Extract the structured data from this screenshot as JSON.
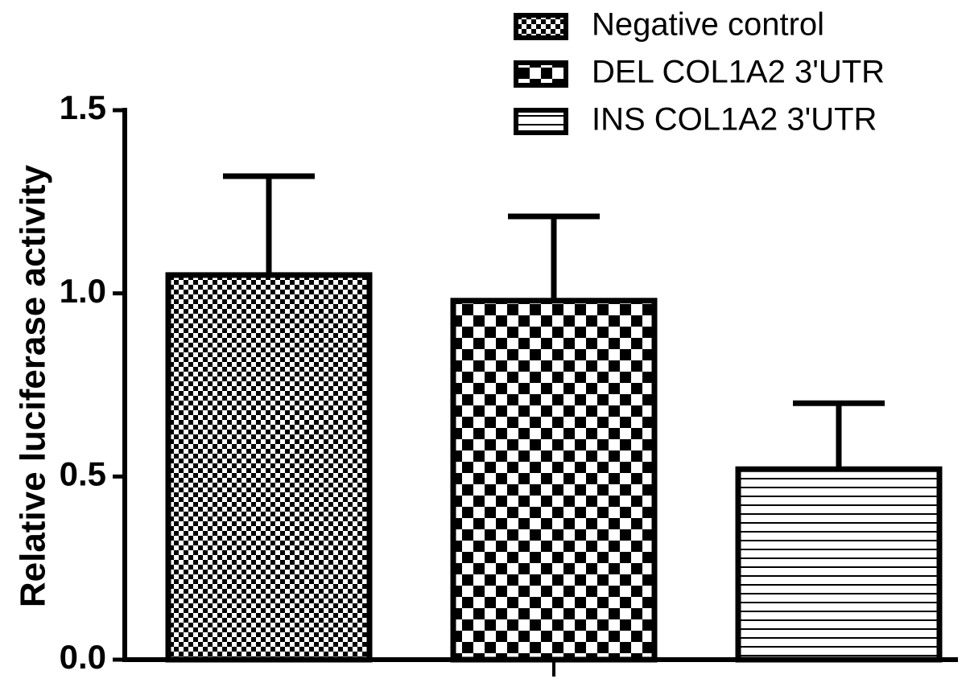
{
  "chart_data": {
    "type": "bar",
    "y_label": "Relative luciferase activity",
    "categories": [
      null
    ],
    "series": [
      {
        "name": "Negative control",
        "pattern": "fine-checker",
        "values": [
          1.05
        ],
        "errors": [
          0.27
        ]
      },
      {
        "name": "DEL COL1A2 3'UTR",
        "pattern": "coarse-checker",
        "values": [
          0.98
        ],
        "errors": [
          0.23
        ]
      },
      {
        "name": "INS COL1A2 3'UTR",
        "pattern": "horizontal-lines",
        "values": [
          0.52
        ],
        "errors": [
          0.18
        ]
      }
    ],
    "ylim": [
      0,
      1.5
    ],
    "yticks": [
      {
        "value": 0,
        "label": "0.0"
      },
      {
        "value": 0.5,
        "label": "0.5"
      },
      {
        "value": 1,
        "label": "1.0"
      },
      {
        "value": 1.5,
        "label": "1.5"
      }
    ],
    "legend": "top-right"
  }
}
